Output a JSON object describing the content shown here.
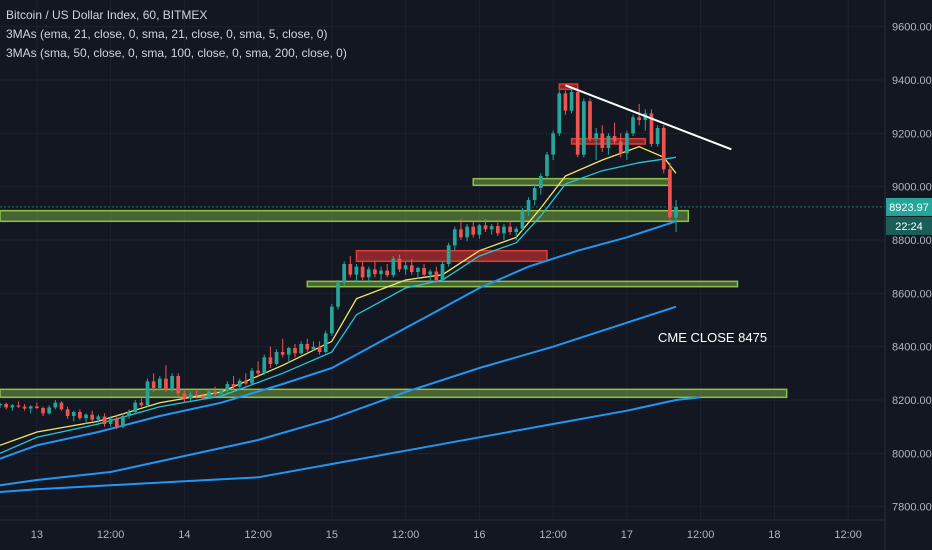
{
  "legend": {
    "line1": "Bitcoin / US Dollar Index, 60, BITMEX",
    "line2": "3MAs (ema, 21, close, 0, sma, 21, close, 0, sma, 5, close, 0)",
    "line3": "3MAs (sma, 50, close, 0, sma, 100, close, 0, sma, 200, close, 0)"
  },
  "price_label": "8923.97",
  "countdown_label": "22:24",
  "annotation": "CME CLOSE 8475",
  "colors": {
    "background": "#131722",
    "up": "#26a69a",
    "down": "#ef5350",
    "zone_green": "#8bc34a",
    "zone_red": "#e53935",
    "ma_yellow": "#f5e663",
    "ma_blue": "#2196f3",
    "trendline": "#ffffff"
  },
  "chart_data": {
    "type": "candlestick",
    "title": "Bitcoin / US Dollar Index, 60, BITMEX",
    "ylim": [
      7750,
      9700
    ],
    "yticks": [
      "7800.00",
      "8000.00",
      "8200.00",
      "8400.00",
      "8600.00",
      "8800.00",
      "9000.00",
      "9200.00",
      "9400.00",
      "9600.00"
    ],
    "xticks": [
      "13",
      "12:00",
      "14",
      "12:00",
      "15",
      "12:00",
      "16",
      "12:00",
      "17",
      "12:00",
      "18",
      "12:00"
    ],
    "xdomain_hours": [
      -6,
      138
    ],
    "xtick_hours": [
      0,
      12,
      24,
      36,
      48,
      60,
      72,
      84,
      96,
      108,
      120,
      132
    ],
    "candles": [
      [
        -6,
        8180,
        8190,
        8170,
        8185
      ],
      [
        -5,
        8185,
        8190,
        8165,
        8172
      ],
      [
        -4,
        8172,
        8185,
        8160,
        8180
      ],
      [
        -3,
        8180,
        8195,
        8170,
        8175
      ],
      [
        -2,
        8175,
        8185,
        8160,
        8168
      ],
      [
        -1,
        8168,
        8180,
        8150,
        8176
      ],
      [
        0,
        8176,
        8190,
        8165,
        8170
      ],
      [
        1,
        8170,
        8175,
        8140,
        8150
      ],
      [
        2,
        8150,
        8180,
        8145,
        8172
      ],
      [
        3,
        8172,
        8200,
        8165,
        8190
      ],
      [
        4,
        8190,
        8195,
        8160,
        8165
      ],
      [
        5,
        8165,
        8175,
        8130,
        8140
      ],
      [
        6,
        8140,
        8160,
        8120,
        8155
      ],
      [
        7,
        8155,
        8165,
        8125,
        8132
      ],
      [
        8,
        8132,
        8150,
        8110,
        8145
      ],
      [
        9,
        8145,
        8160,
        8120,
        8126
      ],
      [
        10,
        8126,
        8145,
        8110,
        8138
      ],
      [
        11,
        8138,
        8150,
        8100,
        8110
      ],
      [
        12,
        8110,
        8140,
        8100,
        8130
      ],
      [
        13,
        8130,
        8145,
        8090,
        8100
      ],
      [
        14,
        8100,
        8150,
        8095,
        8140
      ],
      [
        15,
        8140,
        8165,
        8130,
        8155
      ],
      [
        16,
        8155,
        8200,
        8145,
        8190
      ],
      [
        17,
        8190,
        8210,
        8175,
        8180
      ],
      [
        18,
        8180,
        8280,
        8175,
        8270
      ],
      [
        19,
        8270,
        8300,
        8230,
        8245
      ],
      [
        20,
        8245,
        8290,
        8235,
        8280
      ],
      [
        21,
        8280,
        8330,
        8230,
        8240
      ],
      [
        22,
        8240,
        8300,
        8230,
        8290
      ],
      [
        23,
        8290,
        8300,
        8215,
        8225
      ],
      [
        24,
        8225,
        8240,
        8190,
        8205
      ],
      [
        25,
        8205,
        8230,
        8195,
        8220
      ],
      [
        26,
        8220,
        8240,
        8205,
        8215
      ],
      [
        27,
        8215,
        8225,
        8200,
        8210
      ],
      [
        28,
        8210,
        8240,
        8205,
        8232
      ],
      [
        29,
        8232,
        8250,
        8215,
        8222
      ],
      [
        30,
        8222,
        8240,
        8210,
        8235
      ],
      [
        31,
        8235,
        8270,
        8225,
        8260
      ],
      [
        32,
        8260,
        8290,
        8240,
        8250
      ],
      [
        33,
        8250,
        8280,
        8240,
        8272
      ],
      [
        34,
        8272,
        8300,
        8255,
        8262
      ],
      [
        35,
        8262,
        8320,
        8255,
        8310
      ],
      [
        36,
        8310,
        8345,
        8290,
        8300
      ],
      [
        37,
        8300,
        8370,
        8295,
        8360
      ],
      [
        38,
        8360,
        8400,
        8320,
        8335
      ],
      [
        39,
        8335,
        8390,
        8330,
        8380
      ],
      [
        40,
        8380,
        8430,
        8360,
        8370
      ],
      [
        41,
        8370,
        8400,
        8340,
        8395
      ],
      [
        42,
        8395,
        8410,
        8360,
        8375
      ],
      [
        43,
        8375,
        8420,
        8370,
        8410
      ],
      [
        44,
        8410,
        8430,
        8380,
        8390
      ],
      [
        45,
        8390,
        8420,
        8385,
        8400
      ],
      [
        46,
        8400,
        8420,
        8370,
        8380
      ],
      [
        47,
        8380,
        8460,
        8375,
        8450
      ],
      [
        48,
        8450,
        8560,
        8440,
        8550
      ],
      [
        49,
        8550,
        8650,
        8540,
        8640
      ],
      [
        50,
        8640,
        8720,
        8630,
        8710
      ],
      [
        51,
        8710,
        8740,
        8660,
        8670
      ],
      [
        52,
        8670,
        8710,
        8640,
        8700
      ],
      [
        53,
        8700,
        8720,
        8650,
        8660
      ],
      [
        54,
        8660,
        8700,
        8640,
        8690
      ],
      [
        55,
        8690,
        8720,
        8660,
        8672
      ],
      [
        56,
        8672,
        8700,
        8640,
        8685
      ],
      [
        57,
        8685,
        8710,
        8660,
        8668
      ],
      [
        58,
        8668,
        8740,
        8660,
        8730
      ],
      [
        59,
        8730,
        8745,
        8680,
        8690
      ],
      [
        60,
        8690,
        8720,
        8670,
        8705
      ],
      [
        61,
        8705,
        8730,
        8670,
        8680
      ],
      [
        62,
        8680,
        8700,
        8655,
        8695
      ],
      [
        63,
        8695,
        8710,
        8660,
        8670
      ],
      [
        64,
        8670,
        8690,
        8640,
        8682
      ],
      [
        65,
        8682,
        8700,
        8640,
        8650
      ],
      [
        66,
        8650,
        8720,
        8640,
        8710
      ],
      [
        67,
        8710,
        8790,
        8700,
        8780
      ],
      [
        68,
        8780,
        8850,
        8760,
        8840
      ],
      [
        69,
        8840,
        8880,
        8800,
        8810
      ],
      [
        70,
        8810,
        8860,
        8795,
        8850
      ],
      [
        71,
        8850,
        8870,
        8810,
        8820
      ],
      [
        72,
        8820,
        8860,
        8805,
        8855
      ],
      [
        73,
        8855,
        8880,
        8830,
        8840
      ],
      [
        74,
        8840,
        8860,
        8820,
        8852
      ],
      [
        75,
        8852,
        8865,
        8815,
        8825
      ],
      [
        76,
        8825,
        8860,
        8800,
        8850
      ],
      [
        77,
        8850,
        8870,
        8820,
        8830
      ],
      [
        78,
        8830,
        8850,
        8800,
        8842
      ],
      [
        79,
        8842,
        8920,
        8835,
        8910
      ],
      [
        80,
        8910,
        8960,
        8890,
        8950
      ],
      [
        81,
        8950,
        9010,
        8930,
        8995
      ],
      [
        82,
        8995,
        9050,
        8970,
        9040
      ],
      [
        83,
        9040,
        9130,
        9030,
        9120
      ],
      [
        84,
        9120,
        9210,
        9100,
        9200
      ],
      [
        85,
        9200,
        9360,
        9190,
        9350
      ],
      [
        86,
        9350,
        9360,
        9270,
        9285
      ],
      [
        87,
        9285,
        9370,
        9275,
        9355
      ],
      [
        88,
        9355,
        9370,
        9110,
        9120
      ],
      [
        89,
        9120,
        9330,
        9110,
        9320
      ],
      [
        90,
        9320,
        9330,
        9170,
        9180
      ],
      [
        91,
        9180,
        9220,
        9100,
        9200
      ],
      [
        92,
        9200,
        9230,
        9130,
        9145
      ],
      [
        93,
        9145,
        9200,
        9120,
        9190
      ],
      [
        94,
        9190,
        9240,
        9160,
        9170
      ],
      [
        95,
        9170,
        9200,
        9110,
        9125
      ],
      [
        96,
        9125,
        9210,
        9100,
        9200
      ],
      [
        97,
        9200,
        9270,
        9190,
        9260
      ],
      [
        98,
        9260,
        9310,
        9230,
        9250
      ],
      [
        99,
        9250,
        9290,
        9210,
        9275
      ],
      [
        100,
        9275,
        9290,
        9150,
        9160
      ],
      [
        101,
        9160,
        9230,
        9150,
        9220
      ],
      [
        102,
        9220,
        9230,
        9050,
        9065
      ],
      [
        103,
        9065,
        9090,
        8870,
        8885
      ],
      [
        104,
        8885,
        8950,
        8830,
        8924
      ]
    ],
    "ma_lines": [
      {
        "color": "#f5e663",
        "points": [
          [
            -6,
            8030
          ],
          [
            0,
            8080
          ],
          [
            10,
            8120
          ],
          [
            20,
            8190
          ],
          [
            30,
            8230
          ],
          [
            40,
            8330
          ],
          [
            48,
            8420
          ],
          [
            52,
            8580
          ],
          [
            60,
            8650
          ],
          [
            66,
            8670
          ],
          [
            72,
            8760
          ],
          [
            78,
            8810
          ],
          [
            82,
            8920
          ],
          [
            86,
            9040
          ],
          [
            92,
            9100
          ],
          [
            98,
            9150
          ],
          [
            102,
            9110
          ],
          [
            104,
            9050
          ]
        ]
      },
      {
        "color": "#26c6da",
        "points": [
          [
            -6,
            8000
          ],
          [
            0,
            8060
          ],
          [
            10,
            8110
          ],
          [
            20,
            8175
          ],
          [
            30,
            8215
          ],
          [
            40,
            8300
          ],
          [
            48,
            8380
          ],
          [
            52,
            8520
          ],
          [
            60,
            8620
          ],
          [
            66,
            8650
          ],
          [
            72,
            8740
          ],
          [
            78,
            8790
          ],
          [
            82,
            8890
          ],
          [
            86,
            9010
          ],
          [
            92,
            9060
          ],
          [
            98,
            9090
          ],
          [
            104,
            9110
          ]
        ]
      },
      {
        "color": "#2196f3",
        "points": [
          [
            -6,
            7980
          ],
          [
            0,
            8030
          ],
          [
            10,
            8080
          ],
          [
            20,
            8140
          ],
          [
            30,
            8190
          ],
          [
            40,
            8260
          ],
          [
            48,
            8320
          ],
          [
            56,
            8420
          ],
          [
            64,
            8520
          ],
          [
            72,
            8620
          ],
          [
            80,
            8700
          ],
          [
            88,
            8760
          ],
          [
            96,
            8810
          ],
          [
            104,
            8870
          ]
        ]
      },
      {
        "color": "#2196f3",
        "points": [
          [
            -6,
            7880
          ],
          [
            0,
            7900
          ],
          [
            12,
            7930
          ],
          [
            24,
            7990
          ],
          [
            36,
            8050
          ],
          [
            48,
            8130
          ],
          [
            60,
            8230
          ],
          [
            72,
            8320
          ],
          [
            84,
            8400
          ],
          [
            96,
            8490
          ],
          [
            104,
            8550
          ]
        ]
      },
      {
        "color": "#2196f3",
        "points": [
          [
            -6,
            7855
          ],
          [
            0,
            7865
          ],
          [
            12,
            7880
          ],
          [
            24,
            7895
          ],
          [
            36,
            7910
          ],
          [
            48,
            7960
          ],
          [
            60,
            8010
          ],
          [
            72,
            8060
          ],
          [
            84,
            8110
          ],
          [
            96,
            8160
          ],
          [
            104,
            8200
          ],
          [
            108,
            8210
          ]
        ]
      }
    ],
    "zones_green": [
      [
        -6,
        106,
        8870,
        8910
      ],
      [
        71,
        103,
        9005,
        9030
      ],
      [
        44,
        114,
        8625,
        8645
      ],
      [
        -6,
        122,
        8210,
        8240
      ]
    ],
    "zones_red": [
      [
        52,
        83,
        8720,
        8760
      ],
      [
        87,
        99,
        9160,
        9180
      ],
      [
        85,
        88,
        9365,
        9385
      ]
    ],
    "trendline": [
      [
        86,
        9380
      ],
      [
        113,
        9140
      ]
    ],
    "last_price": 8923.97
  }
}
